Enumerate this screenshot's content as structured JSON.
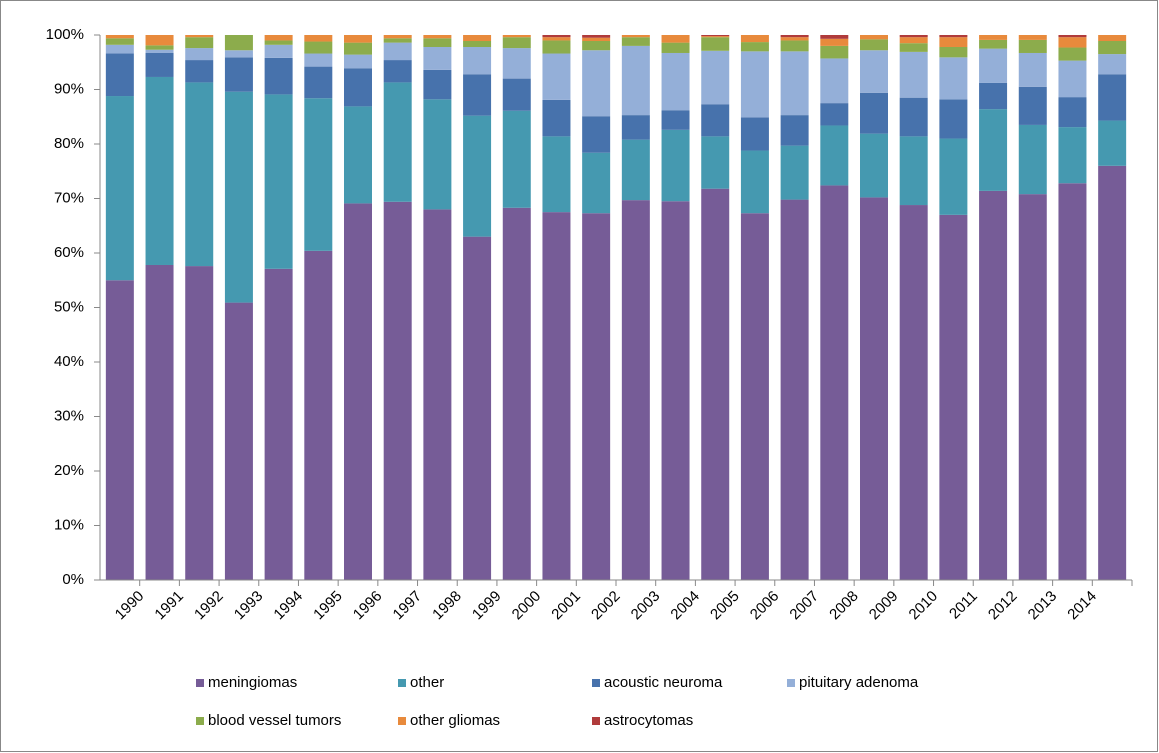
{
  "chart_data": {
    "type": "bar",
    "stacked": true,
    "categories": [
      "1990",
      "1991",
      "1992",
      "1993",
      "1994",
      "1995",
      "1996",
      "1997",
      "1998",
      "1999",
      "2000",
      "2001",
      "2002",
      "2003",
      "2004",
      "2005",
      "2006",
      "2007",
      "2008",
      "2009",
      "2010",
      "2011",
      "2012",
      "2013",
      "2014",
      null
    ],
    "series": [
      {
        "name": "meningiomas",
        "color": "#765C97",
        "values": [
          55,
          57.8,
          57.6,
          50.9,
          57.1,
          60.4,
          69.1,
          69.4,
          68.0,
          63.0,
          68.3,
          67.5,
          67.3,
          69.7,
          69.5,
          71.8,
          67.3,
          69.8,
          72.4,
          70.2,
          68.8,
          67.0,
          71.4,
          70.8,
          72.8,
          76.0
        ]
      },
      {
        "name": "other",
        "color": "#4599B0",
        "values": [
          33.8,
          34.5,
          33.7,
          38.7,
          32.0,
          28.0,
          17.8,
          21.9,
          20.2,
          22.2,
          17.8,
          13.9,
          11.1,
          11.1,
          13.1,
          9.6,
          11.5,
          9.9,
          11.0,
          11.7,
          12.6,
          14.0,
          15.0,
          12.7,
          10.3,
          8.3
        ]
      },
      {
        "name": "acoustic neuroma",
        "color": "#4772AC",
        "values": [
          7.8,
          4.4,
          4.1,
          6.3,
          6.7,
          5.8,
          7.0,
          4.1,
          5.4,
          7.6,
          5.9,
          6.7,
          6.7,
          4.5,
          3.6,
          5.9,
          6.1,
          5.6,
          4.1,
          7.5,
          7.1,
          7.2,
          4.8,
          7.0,
          5.5,
          8.5
        ]
      },
      {
        "name": "pituitary adenoma",
        "color": "#94AFD8",
        "values": [
          1.6,
          0.6,
          2.2,
          1.3,
          2.4,
          2.4,
          2.5,
          3.2,
          4.2,
          5.0,
          5.6,
          8.5,
          12.1,
          12.7,
          10.5,
          9.8,
          12.1,
          11.7,
          8.2,
          7.8,
          8.4,
          7.7,
          6.3,
          6.2,
          6.7,
          3.7
        ]
      },
      {
        "name": "blood vessel tumors",
        "color": "#8CAC4C",
        "values": [
          1.2,
          0.8,
          2.0,
          2.8,
          0.8,
          2.2,
          2.2,
          0.8,
          1.6,
          1.1,
          2.0,
          2.4,
          1.7,
          1.6,
          1.9,
          2.5,
          1.7,
          2.0,
          2.3,
          2.0,
          1.6,
          1.9,
          1.6,
          2.4,
          2.4,
          2.4
        ]
      },
      {
        "name": "other gliomas",
        "color": "#E88A3C",
        "values": [
          0.6,
          1.9,
          0.4,
          0,
          1.0,
          1.2,
          1.4,
          0.6,
          0.6,
          1.1,
          0.4,
          0.6,
          0.6,
          0.4,
          1.4,
          0.2,
          1.3,
          0.6,
          1.3,
          0.8,
          1.1,
          1.8,
          0.9,
          0.9,
          1.9,
          1.1
        ]
      },
      {
        "name": "astrocytomas",
        "color": "#B03B3B",
        "values": [
          0,
          0,
          0,
          0,
          0,
          0,
          0,
          0,
          0,
          0,
          0,
          0.4,
          0.5,
          0,
          0,
          0.2,
          0,
          0.4,
          0.7,
          0,
          0.4,
          0.4,
          0,
          0,
          0.4,
          0
        ]
      }
    ],
    "ylim": [
      0,
      100
    ],
    "yticks": [
      {
        "value": 0,
        "label": "0%"
      },
      {
        "value": 10,
        "label": "10%"
      },
      {
        "value": 20,
        "label": "20%"
      },
      {
        "value": 30,
        "label": "30%"
      },
      {
        "value": 40,
        "label": "40%"
      },
      {
        "value": 50,
        "label": "50%"
      },
      {
        "value": 60,
        "label": "60%"
      },
      {
        "value": 70,
        "label": "70%"
      },
      {
        "value": 80,
        "label": "80%"
      },
      {
        "value": 90,
        "label": "90%"
      },
      {
        "value": 100,
        "label": "100%"
      }
    ],
    "grid": false
  }
}
